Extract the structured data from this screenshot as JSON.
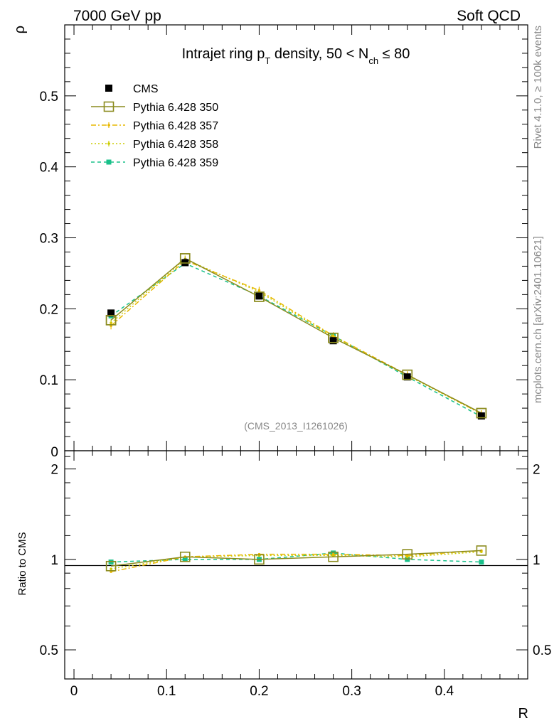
{
  "header": {
    "left": "7000 GeV pp",
    "right": "Soft QCD"
  },
  "side": {
    "top": "Rivet 4.1.0, ≥ 100k events",
    "bottom": "mcplots.cern.ch [arXiv:2401.10621]"
  },
  "chart_data": {
    "type": "line",
    "title_main": "Intrajet ring p",
    "title_sub_T": "T",
    "title_mid": " density, 50 < N",
    "title_sub_ch": "ch",
    "title_end": " ≤ 80",
    "analysis_tag": "(CMS_2013_I1261026)",
    "xlabel": "R",
    "ylabel_top": "ρ",
    "ylabel_bottom": "Ratio to CMS",
    "xlim": [
      -0.01,
      0.49
    ],
    "ylim_top": [
      0.0,
      0.6
    ],
    "ylim_bottom": [
      0.4,
      2.3
    ],
    "x_ticks": [
      0,
      0.1,
      0.2,
      0.3,
      0.4
    ],
    "x_tick_labels": [
      "0",
      "0.1",
      "0.2",
      "0.3",
      "0.4"
    ],
    "y_ticks_top": [
      0.1,
      0.2,
      0.3,
      0.4,
      0.5
    ],
    "y_tick_labels_top": [
      "0.1",
      "0.2",
      "0.3",
      "0.4",
      "0.5"
    ],
    "y_ticks_bottom": [
      0.5,
      1,
      2
    ],
    "y_tick_labels_bottom": [
      "0.5",
      "1",
      "2"
    ],
    "x": [
      0.04,
      0.12,
      0.2,
      0.28,
      0.36,
      0.44
    ],
    "data": {
      "name": "CMS",
      "values": [
        0.194,
        0.265,
        0.218,
        0.155,
        0.104,
        0.049
      ],
      "errors": [
        0.004,
        0.004,
        0.003,
        0.003,
        0.002,
        0.002
      ]
    },
    "series": [
      {
        "name": "Pythia 6.428 350",
        "color": "#8b8b1e",
        "style": "solid",
        "marker": "open-square",
        "values": [
          0.184,
          0.271,
          0.217,
          0.159,
          0.107,
          0.053
        ],
        "ratio": [
          0.95,
          1.02,
          1.0,
          1.02,
          1.04,
          1.07
        ]
      },
      {
        "name": "Pythia 6.428 357",
        "color": "#e8b800",
        "style": "dashdot",
        "marker": "small-dot",
        "values": [
          0.176,
          0.268,
          0.226,
          0.162,
          0.107,
          0.052
        ],
        "ratio": [
          0.91,
          1.02,
          1.04,
          1.04,
          1.03,
          1.07
        ]
      },
      {
        "name": "Pythia 6.428 358",
        "color": "#cccc00",
        "style": "dotted",
        "marker": "small-dot",
        "values": [
          0.18,
          0.27,
          0.224,
          0.16,
          0.106,
          0.052
        ],
        "ratio": [
          0.93,
          1.02,
          1.03,
          1.03,
          1.02,
          1.06
        ]
      },
      {
        "name": "Pythia 6.428 359",
        "color": "#19c08a",
        "style": "dashed",
        "marker": "filled-square",
        "values": [
          0.19,
          0.264,
          0.218,
          0.162,
          0.104,
          0.048
        ],
        "ratio": [
          0.98,
          1.0,
          1.0,
          1.05,
          1.0,
          0.98
        ]
      }
    ]
  }
}
